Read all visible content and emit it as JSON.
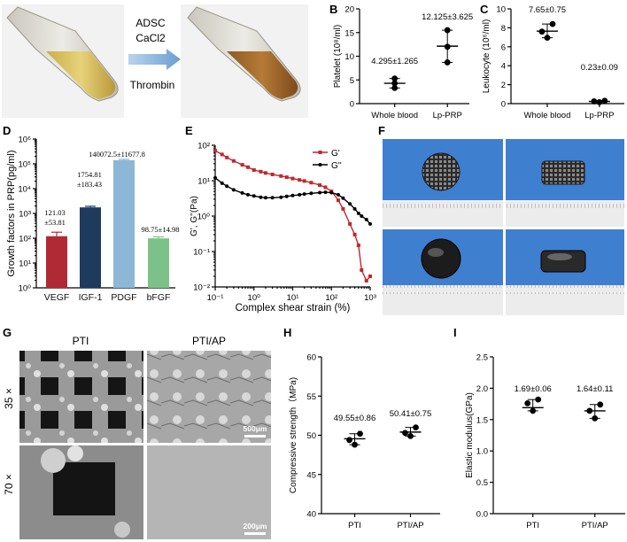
{
  "panels": {
    "A": {
      "label": "A",
      "treatment": [
        "ADSC",
        "CaCl2",
        "Thrombin"
      ]
    },
    "B": {
      "label": "B"
    },
    "C": {
      "label": "C"
    },
    "D": {
      "label": "D"
    },
    "E": {
      "label": "E"
    },
    "F": {
      "label": "F"
    },
    "G": {
      "label": "G",
      "col_headers": [
        "PTI",
        "PTI/AP"
      ],
      "row_labels": [
        "35 ×",
        "70 ×"
      ],
      "scalebars": [
        "500μm",
        "200μm"
      ]
    },
    "H": {
      "label": "H"
    },
    "I": {
      "label": "I"
    }
  },
  "colors": {
    "vegf": "#b02a36",
    "igf1": "#1e3a5c",
    "pdgf": "#8db7d6",
    "bfgf": "#7dc18a",
    "g_prime": "#c0282f",
    "g_double": "#000000"
  },
  "chart_data": [
    {
      "id": "B",
      "type": "scatter",
      "categories": [
        "Whole blood",
        "Lp-PRP"
      ],
      "series": [
        {
          "values": [
            [
              3.3,
              4.3,
              5.3
            ],
            [
              8.7,
              12.0,
              15.5
            ]
          ]
        }
      ],
      "means": [
        4.295,
        12.125
      ],
      "annotations": [
        "4.295±1.265",
        "12.125±3.625"
      ],
      "ylabel": "Platelet  (10⁸/ml)",
      "ylim": [
        0,
        20
      ],
      "yticks": [
        "0",
        "5",
        "10",
        "15",
        "20"
      ]
    },
    {
      "id": "C",
      "type": "scatter",
      "categories": [
        "Whole blood",
        "Lp-PRP"
      ],
      "series": [
        {
          "values": [
            [
              6.95,
              7.6,
              8.4
            ],
            [
              0.15,
              0.24,
              0.3
            ]
          ]
        }
      ],
      "means": [
        7.65,
        0.23
      ],
      "annotations": [
        "7.65±0.75",
        "0.23±0.09"
      ],
      "ylabel": "Leukocyte  (10⁶/ml)",
      "ylim": [
        0,
        10
      ],
      "yticks": [
        "0",
        "2",
        "4",
        "6",
        "8",
        "10"
      ]
    },
    {
      "id": "D",
      "type": "bar",
      "scale": "log",
      "categories": [
        "VEGF",
        "IGF-1",
        "PDGF",
        "bFGF"
      ],
      "values": [
        121.03,
        1754.81,
        140072.5,
        98.75
      ],
      "errors": [
        53.81,
        183.43,
        11677.8,
        14.98
      ],
      "annotations": [
        "121.03\n±53.81",
        "1754.81\n±183.43",
        "140072.5±11677.8",
        "98.75±14.98"
      ],
      "ylabel": "Growth factors in PRP(pg/ml)",
      "ylim": [
        1,
        1000000
      ],
      "yticks": [
        "10⁰",
        "10¹",
        "10²",
        "10³",
        "10⁴",
        "10⁵",
        "10⁶"
      ]
    },
    {
      "id": "E",
      "type": "line",
      "scale": "loglog",
      "series": [
        {
          "name": "G'",
          "x": [
            0.1,
            0.15,
            0.2,
            0.3,
            0.5,
            0.7,
            1,
            1.5,
            2,
            3,
            5,
            7,
            10,
            15,
            20,
            30,
            50,
            70,
            100,
            150,
            200,
            300,
            400,
            500,
            600,
            800,
            1000
          ],
          "y": [
            70,
            55,
            45,
            36,
            28,
            24,
            20,
            18,
            16.5,
            15,
            13.5,
            12.5,
            11.5,
            10.5,
            9.8,
            8.8,
            7.5,
            6.5,
            5,
            2.8,
            1.6,
            0.6,
            0.3,
            0.15,
            0.03,
            0.015,
            0.02
          ]
        },
        {
          "name": "G''",
          "x": [
            0.1,
            0.15,
            0.2,
            0.3,
            0.5,
            0.7,
            1,
            1.5,
            2,
            3,
            5,
            7,
            10,
            15,
            20,
            30,
            50,
            70,
            100,
            150,
            200,
            300,
            400,
            500,
            600,
            800,
            1000
          ],
          "y": [
            12,
            8.5,
            7,
            5.5,
            4.5,
            4,
            3.7,
            3.4,
            3.3,
            3.3,
            3.4,
            3.6,
            3.8,
            4.0,
            4.2,
            4.4,
            4.6,
            4.7,
            4.6,
            4.0,
            3.2,
            2.2,
            1.6,
            1.2,
            1.0,
            0.8,
            0.6
          ]
        }
      ],
      "legend": [
        "G'",
        "G''"
      ],
      "xlabel": "Complex shear strain (%)",
      "ylabel": "G', G''(Pa)",
      "xlim": [
        0.1,
        1000
      ],
      "ylim": [
        0.01,
        100
      ],
      "xticks": [
        "10⁻¹",
        "10⁰",
        "10¹",
        "10²",
        "10³"
      ],
      "yticks": [
        "10⁻²",
        "10⁻¹",
        "10⁰",
        "10¹",
        "10²"
      ]
    },
    {
      "id": "H",
      "type": "scatter",
      "categories": [
        "PTI",
        "PTI/AP"
      ],
      "series": [
        {
          "values": [
            [
              48.8,
              49.4,
              50.2
            ],
            [
              49.9,
              50.3,
              51.0
            ]
          ]
        }
      ],
      "means": [
        49.55,
        50.41
      ],
      "annotations": [
        "49.55±0.86",
        "50.41±0.75"
      ],
      "ylabel": "Compressive strength（MPa)",
      "ylim": [
        40,
        60
      ],
      "yticks": [
        "40",
        "45",
        "50",
        "55",
        "60"
      ]
    },
    {
      "id": "I",
      "type": "scatter",
      "categories": [
        "PTI",
        "PTI/AP"
      ],
      "series": [
        {
          "values": [
            [
              1.64,
              1.76,
              1.82
            ],
            [
              1.52,
              1.64,
              1.74
            ]
          ]
        }
      ],
      "means": [
        1.69,
        1.64
      ],
      "annotations": [
        "1.69±0.06",
        "1.64±0.11"
      ],
      "ylabel": "Elastic modulus(GPa)",
      "ylim": [
        0.0,
        2.5
      ],
      "yticks": [
        "0.0",
        "0.5",
        "1.0",
        "1.5",
        "2.0",
        "2.5"
      ]
    }
  ]
}
